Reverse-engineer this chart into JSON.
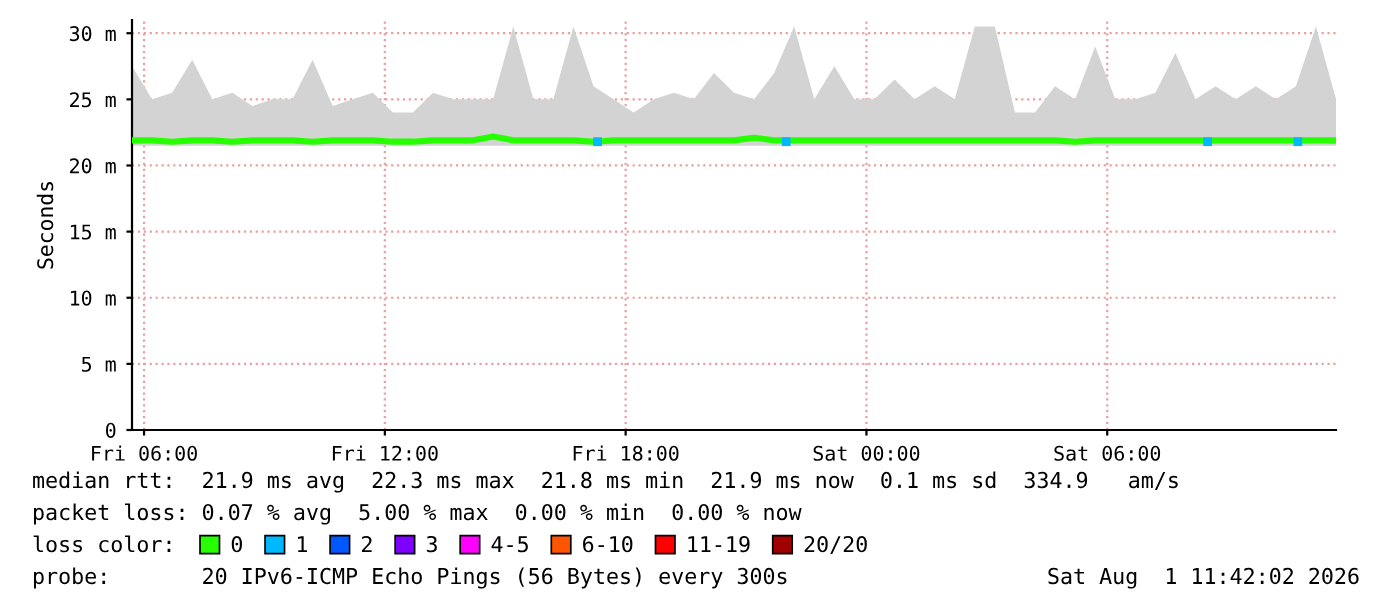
{
  "chart_data": {
    "type": "line",
    "ylabel": "Seconds",
    "xlim": [
      "2026-07-31T05:42",
      "2026-08-01T11:42"
    ],
    "ylim": [
      0,
      31
    ],
    "xticks": [
      {
        "value": "2026-07-31T06:00",
        "label": "Fri 06:00"
      },
      {
        "value": "2026-07-31T12:00",
        "label": "Fri 12:00"
      },
      {
        "value": "2026-07-31T18:00",
        "label": "Fri 18:00"
      },
      {
        "value": "2026-08-01T00:00",
        "label": "Sat 00:00"
      },
      {
        "value": "2026-08-01T06:00",
        "label": "Sat 06:00"
      }
    ],
    "yticks": [
      0,
      {
        "value": 5,
        "label": "5 m"
      },
      {
        "value": 10,
        "label": "10 m"
      },
      {
        "value": 15,
        "label": "15 m"
      },
      {
        "value": 20,
        "label": "20 m"
      },
      {
        "value": 25,
        "label": "25 m"
      },
      {
        "value": 30,
        "label": "30 m"
      }
    ],
    "grid": true,
    "legend": "bottom",
    "legend_title": "loss color:",
    "series": [
      {
        "name": "0",
        "color": "#26ff00",
        "x": [
          "2026-07-31T05:42",
          "2026-07-31T06:12",
          "2026-07-31T06:42",
          "2026-07-31T07:12",
          "2026-07-31T07:42",
          "2026-07-31T08:12",
          "2026-07-31T08:42",
          "2026-07-31T09:12",
          "2026-07-31T09:42",
          "2026-07-31T10:12",
          "2026-07-31T10:42",
          "2026-07-31T11:12",
          "2026-07-31T11:42",
          "2026-07-31T12:12",
          "2026-07-31T12:42",
          "2026-07-31T13:12",
          "2026-07-31T13:42",
          "2026-07-31T14:12",
          "2026-07-31T14:42",
          "2026-07-31T15:12",
          "2026-07-31T15:42",
          "2026-07-31T16:12",
          "2026-07-31T16:42",
          "2026-07-31T17:12",
          "2026-07-31T17:42",
          "2026-07-31T18:12",
          "2026-07-31T18:42",
          "2026-07-31T19:12",
          "2026-07-31T19:42",
          "2026-07-31T20:12",
          "2026-07-31T20:42",
          "2026-07-31T21:12",
          "2026-07-31T21:42",
          "2026-07-31T22:12",
          "2026-07-31T22:42",
          "2026-07-31T23:12",
          "2026-07-31T23:42",
          "2026-08-01T00:12",
          "2026-08-01T00:42",
          "2026-08-01T01:12",
          "2026-08-01T01:42",
          "2026-08-01T02:12",
          "2026-08-01T02:42",
          "2026-08-01T03:12",
          "2026-08-01T03:42",
          "2026-08-01T04:12",
          "2026-08-01T04:42",
          "2026-08-01T05:12",
          "2026-08-01T05:42",
          "2026-08-01T06:12",
          "2026-08-01T06:42",
          "2026-08-01T07:12",
          "2026-08-01T07:42",
          "2026-08-01T08:12",
          "2026-08-01T08:42",
          "2026-08-01T09:12",
          "2026-08-01T09:42",
          "2026-08-01T10:12",
          "2026-08-01T10:42",
          "2026-08-01T11:12",
          "2026-08-01T11:42"
        ],
        "values": [
          21.9,
          21.9,
          21.8,
          21.9,
          21.9,
          21.8,
          21.9,
          21.9,
          21.9,
          21.8,
          21.9,
          21.9,
          21.9,
          21.8,
          21.8,
          21.9,
          21.9,
          21.9,
          22.2,
          21.9,
          21.9,
          21.9,
          21.9,
          21.8,
          21.9,
          21.9,
          21.9,
          21.9,
          21.9,
          21.9,
          21.9,
          22.1,
          21.9,
          21.9,
          21.9,
          21.9,
          21.9,
          21.9,
          21.9,
          21.9,
          21.9,
          21.9,
          21.9,
          21.9,
          21.9,
          21.9,
          21.9,
          21.8,
          21.9,
          21.9,
          21.9,
          21.9,
          21.9,
          21.9,
          21.9,
          21.9,
          21.9,
          21.9,
          21.9,
          21.9,
          21.9
        ],
        "lower": [
          21.5,
          21.5,
          21.5,
          21.5,
          21.5,
          21.5,
          21.5,
          21.5,
          21.5,
          21.5,
          21.5,
          21.5,
          21.5,
          21.5,
          21.5,
          21.5,
          21.5,
          21.5,
          21.5,
          21.5,
          21.5,
          21.5,
          21.5,
          21.5,
          21.5,
          21.5,
          21.5,
          21.5,
          21.5,
          21.5,
          21.5,
          21.5,
          21.5,
          21.5,
          21.5,
          21.5,
          21.5,
          21.5,
          21.5,
          21.5,
          21.5,
          21.5,
          21.5,
          21.5,
          21.5,
          21.5,
          21.5,
          21.5,
          21.5,
          21.5,
          21.5,
          21.5,
          21.5,
          21.5,
          21.5,
          21.5,
          21.5,
          21.5,
          21.5,
          21.5,
          21.5
        ],
        "upper": [
          27.5,
          25,
          25.5,
          28,
          25,
          25.5,
          24.5,
          25,
          25,
          28,
          24.5,
          25,
          25.5,
          24,
          24,
          25.5,
          25,
          25,
          25,
          30.5,
          25,
          25,
          30.5,
          26,
          25,
          24,
          25,
          25.5,
          25,
          27,
          25.5,
          25,
          27,
          30.5,
          25,
          27.5,
          25,
          25,
          26.5,
          25,
          26,
          25,
          30.5,
          30.5,
          24,
          24,
          26,
          25,
          29,
          25,
          25,
          25.5,
          28.5,
          25,
          26,
          25,
          26,
          25,
          26,
          30.5,
          25
        ]
      },
      {
        "name": "1",
        "color": "#00b8ff",
        "type": "scatter",
        "x": [
          "2026-07-31T17:18",
          "2026-07-31T22:00",
          "2026-08-01T08:30",
          "2026-08-01T10:45"
        ],
        "values": [
          21.8,
          21.8,
          21.8,
          21.8
        ]
      },
      {
        "name": "2",
        "color": "#0059ff",
        "type": "scatter"
      },
      {
        "name": "3",
        "color": "#7e00ff",
        "type": "scatter"
      },
      {
        "name": "4-5",
        "color": "#ff00ff",
        "type": "scatter"
      },
      {
        "name": "6-10",
        "color": "#ff5500",
        "type": "scatter"
      },
      {
        "name": "11-19",
        "color": "#ff0000",
        "type": "scatter"
      },
      {
        "name": "20/20",
        "color": "#a10000",
        "type": "scatter"
      }
    ],
    "annotations": [
      "median rtt:  21.9 ms avg  22.3 ms max  21.8 ms min  21.9 ms now  0.1 ms sd  334.9   am/s",
      "packet loss: 0.07 % avg  5.00 % max  0.00 % min  0.00 % now",
      "probe:       20 IPv6-ICMP Echo Pings (56 Bytes) every 300s",
      "Sat Aug  1 11:42:02 2026"
    ]
  }
}
